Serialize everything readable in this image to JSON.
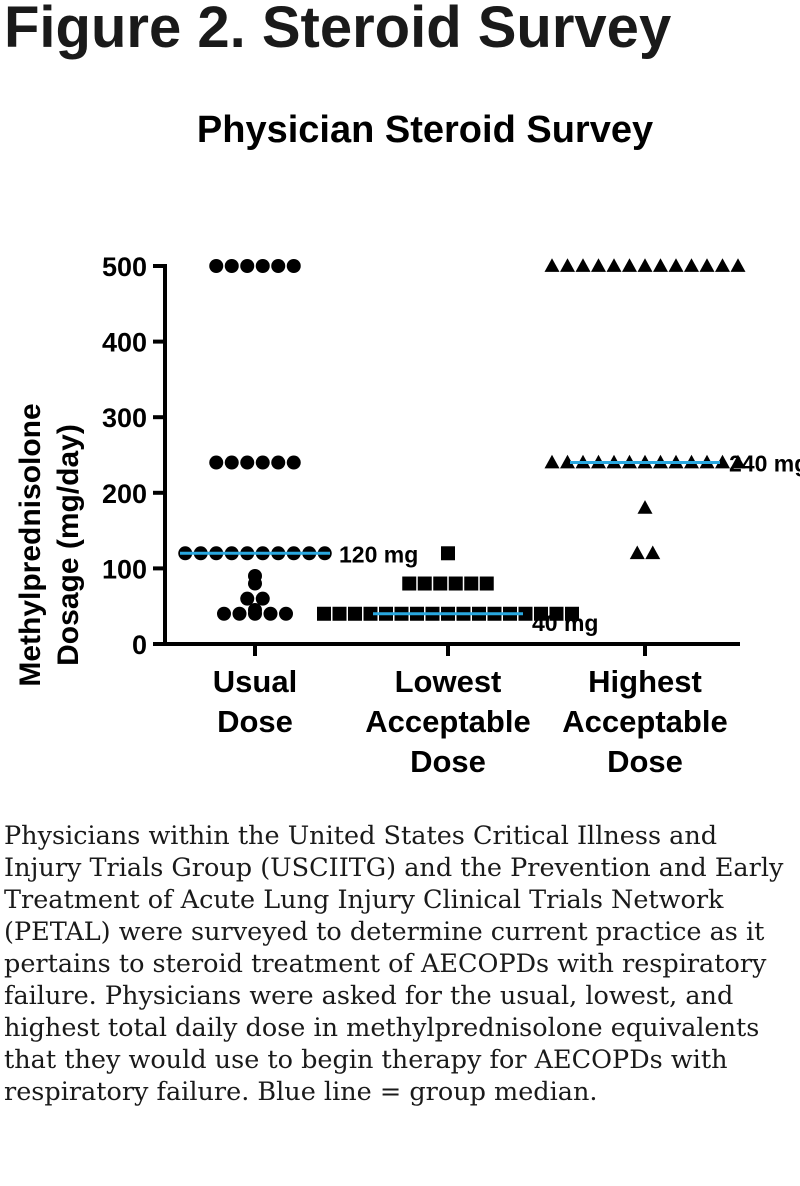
{
  "figure": {
    "title": "Figure 2. Steroid Survey",
    "caption": "Physicians within the United States Critical Illness and Injury Trials Group (USCIITG) and the Prevention and Early Treatment of Acute Lung Injury Clinical Trials Network (PETAL) were surveyed to determine current practice as it pertains to steroid treatment of AECOPDs with respiratory failure. Physicians were asked for the usual, lowest, and highest total daily dose in methylprednisolone equivalents that they would use to begin therapy for AECOPDs with respiratory failure. Blue line = group median."
  },
  "chart_data": {
    "type": "scatter",
    "title": "Physician Steroid Survey",
    "ylabel": [
      "Methylprednisolone",
      "Dosage (mg/day)"
    ],
    "ylim": [
      0,
      500
    ],
    "yticks": [
      0,
      100,
      200,
      300,
      400,
      500
    ],
    "grid": false,
    "median_color": "#29a8e0",
    "groups": [
      {
        "label": [
          "Usual",
          "Dose"
        ],
        "marker": "circle",
        "values": [
          500,
          500,
          500,
          500,
          500,
          500,
          240,
          240,
          240,
          240,
          240,
          240,
          120,
          120,
          120,
          120,
          120,
          120,
          120,
          120,
          120,
          120,
          90,
          80,
          60,
          60,
          45,
          40,
          40,
          40,
          40,
          40
        ],
        "median": 120,
        "median_label": "120 mg"
      },
      {
        "label": [
          "Lowest",
          "Acceptable",
          "Dose"
        ],
        "marker": "square",
        "values": [
          120,
          80,
          80,
          80,
          80,
          80,
          80,
          40,
          40,
          40,
          40,
          40,
          40,
          40,
          40,
          40,
          40,
          40,
          40,
          40,
          40,
          40,
          40,
          40
        ],
        "median": 40,
        "median_label": "40 mg"
      },
      {
        "label": [
          "Highest",
          "Acceptable",
          "Dose"
        ],
        "marker": "triangle",
        "values": [
          500,
          500,
          500,
          500,
          500,
          500,
          500,
          500,
          500,
          500,
          500,
          500,
          500,
          240,
          240,
          240,
          240,
          240,
          240,
          240,
          240,
          240,
          240,
          240,
          240,
          240,
          180,
          120,
          120
        ],
        "median": 240,
        "median_label": "240 mg"
      }
    ]
  }
}
